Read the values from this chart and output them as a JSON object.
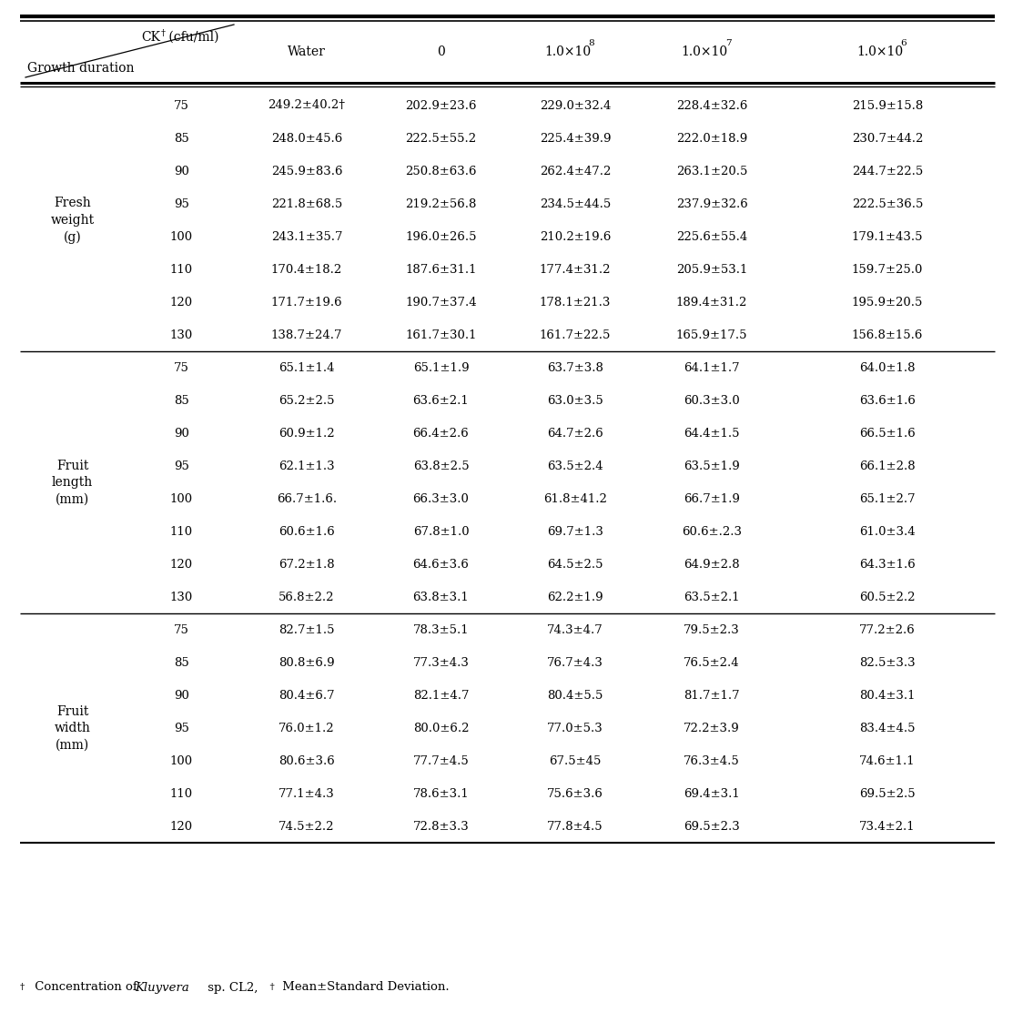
{
  "row_groups": [
    {
      "label": "Fresh\nweight\n(g)",
      "rows": [
        [
          "75",
          "249.2±40.2†",
          "202.9±23.6",
          "229.0±32.4",
          "228.4±32.6",
          "215.9±15.8"
        ],
        [
          "85",
          "248.0±45.6",
          "222.5±55.2",
          "225.4±39.9",
          "222.0±18.9",
          "230.7±44.2"
        ],
        [
          "90",
          "245.9±83.6",
          "250.8±63.6",
          "262.4±47.2",
          "263.1±20.5",
          "244.7±22.5"
        ],
        [
          "95",
          "221.8±68.5",
          "219.2±56.8",
          "234.5±44.5",
          "237.9±32.6",
          "222.5±36.5"
        ],
        [
          "100",
          "243.1±35.7",
          "196.0±26.5",
          "210.2±19.6",
          "225.6±55.4",
          "179.1±43.5"
        ],
        [
          "110",
          "170.4±18.2",
          "187.6±31.1",
          "177.4±31.2",
          "205.9±53.1",
          "159.7±25.0"
        ],
        [
          "120",
          "171.7±19.6",
          "190.7±37.4",
          "178.1±21.3",
          "189.4±31.2",
          "195.9±20.5"
        ],
        [
          "130",
          "138.7±24.7",
          "161.7±30.1",
          "161.7±22.5",
          "165.9±17.5",
          "156.8±15.6"
        ]
      ]
    },
    {
      "label": "Fruit\nlength\n(mm)",
      "rows": [
        [
          "75",
          "65.1±1.4",
          "65.1±1.9",
          "63.7±3.8",
          "64.1±1.7",
          "64.0±1.8"
        ],
        [
          "85",
          "65.2±2.5",
          "63.6±2.1",
          "63.0±3.5",
          "60.3±3.0",
          "63.6±1.6"
        ],
        [
          "90",
          "60.9±1.2",
          "66.4±2.6",
          "64.7±2.6",
          "64.4±1.5",
          "66.5±1.6"
        ],
        [
          "95",
          "62.1±1.3",
          "63.8±2.5",
          "63.5±2.4",
          "63.5±1.9",
          "66.1±2.8"
        ],
        [
          "100",
          "66.7±1.6.",
          "66.3±3.0",
          "61.8±41.2",
          "66.7±1.9",
          "65.1±2.7"
        ],
        [
          "110",
          "60.6±1.6",
          "67.8±1.0",
          "69.7±1.3",
          "60.6±.2.3",
          "61.0±3.4"
        ],
        [
          "120",
          "67.2±1.8",
          "64.6±3.6",
          "64.5±2.5",
          "64.9±2.8",
          "64.3±1.6"
        ],
        [
          "130",
          "56.8±2.2",
          "63.8±3.1",
          "62.2±1.9",
          "63.5±2.1",
          "60.5±2.2"
        ]
      ]
    },
    {
      "label": "Fruit\nwidth\n(mm)",
      "rows": [
        [
          "75",
          "82.7±1.5",
          "78.3±5.1",
          "74.3±4.7",
          "79.5±2.3",
          "77.2±2.6"
        ],
        [
          "85",
          "80.8±6.9",
          "77.3±4.3",
          "76.7±4.3",
          "76.5±2.4",
          "82.5±3.3"
        ],
        [
          "90",
          "80.4±6.7",
          "82.1±4.7",
          "80.4±5.5",
          "81.7±1.7",
          "80.4±3.1"
        ],
        [
          "95",
          "76.0±1.2",
          "80.0±6.2",
          "77.0±5.3",
          "72.2±3.9",
          "83.4±4.5"
        ],
        [
          "100",
          "80.6±3.6",
          "77.7±4.5",
          "67.5±45",
          "76.3±4.5",
          "74.6±1.1"
        ],
        [
          "110",
          "77.1±4.3",
          "78.6±3.1",
          "75.6±3.6",
          "69.4±3.1",
          "69.5±2.5"
        ],
        [
          "120",
          "74.5±2.2",
          "72.8±3.3",
          "77.8±4.5",
          "69.5±2.3",
          "73.4±2.1"
        ]
      ]
    }
  ],
  "bg_color": "#ffffff"
}
